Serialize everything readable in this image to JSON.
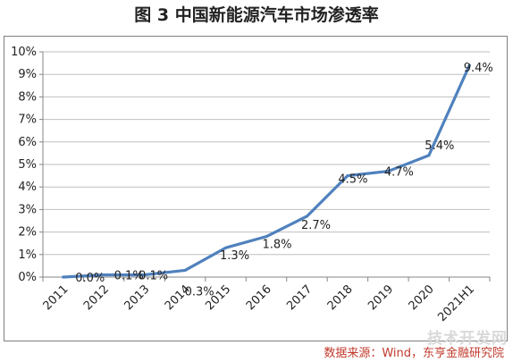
{
  "header": {
    "title": "图 3 中国新能源汽车市场渗透率"
  },
  "footer": {
    "source": "数据来源：Wind，东亨金融研究院",
    "watermark": "技术开发网"
  },
  "chart_data": {
    "type": "line",
    "title": "",
    "xlabel": "",
    "ylabel": "",
    "categories": [
      "2011",
      "2012",
      "2013",
      "2014",
      "2015",
      "2016",
      "2017",
      "2018",
      "2019",
      "2020",
      "2021H1"
    ],
    "series": [
      {
        "name": "",
        "color": "#4f81bd",
        "values": [
          0.0,
          0.1,
          0.1,
          0.3,
          1.3,
          1.8,
          2.7,
          4.5,
          4.7,
          5.4,
          9.4
        ],
        "labels": [
          "0.0%",
          "0.1%",
          "0.1%",
          "0.3%",
          "1.3%",
          "1.8%",
          "2.7%",
          "4.5%",
          "4.7%",
          "5.4%",
          "9.4%"
        ]
      }
    ],
    "ylim": [
      0,
      10
    ],
    "yticks": [
      "0%",
      "1%",
      "2%",
      "3%",
      "4%",
      "5%",
      "6%",
      "7%",
      "8%",
      "9%",
      "10%"
    ],
    "grid": true,
    "legend": "none"
  }
}
